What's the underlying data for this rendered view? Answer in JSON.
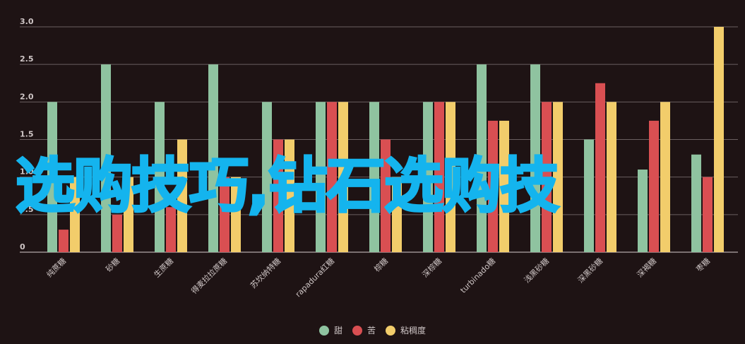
{
  "chart_data": {
    "type": "bar",
    "categories": [
      "纯蔗糖",
      "砂糖",
      "生蔗糖",
      "得麦拉拉蔗糖",
      "苏坎纳特糖",
      "rapadura红糖",
      "棕糖",
      "深棕糖",
      "turbinado糖",
      "浅黑砂糖",
      "深黑砂糖",
      "深褐糖",
      "枣糖"
    ],
    "series": [
      {
        "name": "甜",
        "color": "#8fc3a0",
        "values": [
          2,
          2.5,
          2,
          2.5,
          2,
          2,
          2,
          2,
          2.5,
          2.5,
          1.5,
          1.1,
          1.3
        ]
      },
      {
        "name": "苦",
        "color": "#d94f52",
        "values": [
          0.3,
          0.5,
          0.6,
          1.0,
          1.5,
          2,
          1.5,
          2,
          1.75,
          2,
          2.25,
          1.75,
          1
        ]
      },
      {
        "name": "粘稠度",
        "color": "#f2cd6b",
        "values": [
          1,
          1,
          1.5,
          1,
          1.5,
          2,
          1,
          2,
          1.75,
          2,
          2,
          2,
          3
        ]
      }
    ],
    "y_ticks": [
      "0",
      "0.5",
      "1.0",
      "1.5",
      "2.0",
      "2.5",
      "3.0"
    ],
    "ylim": [
      0,
      3
    ],
    "grid": true,
    "legend_position": "bottom-center"
  },
  "watermark": "选购技巧,钻石选购技"
}
